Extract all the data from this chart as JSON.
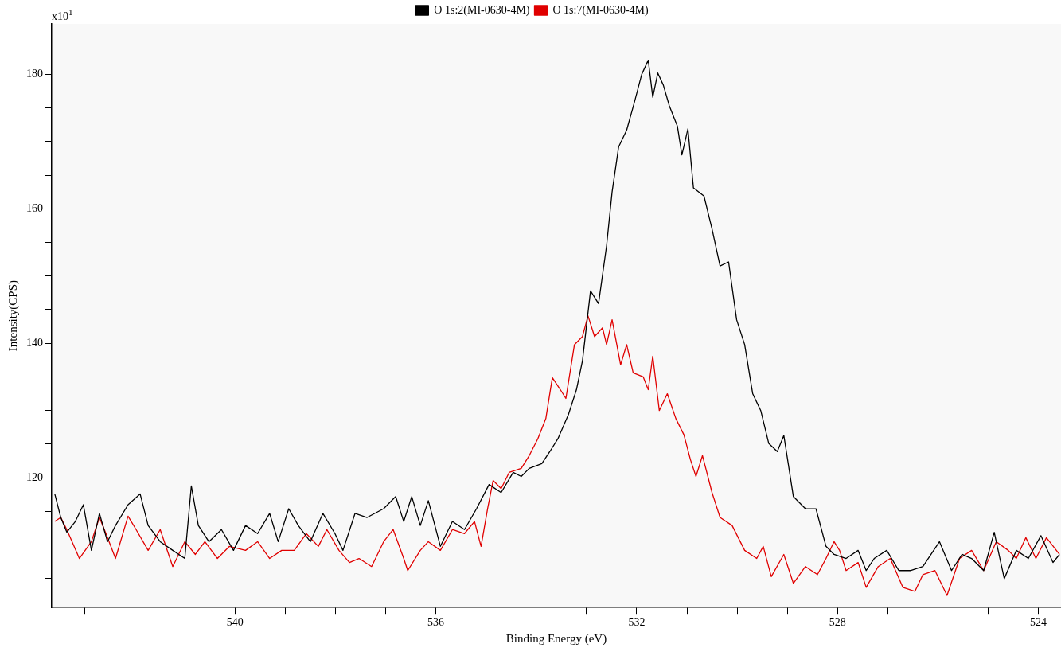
{
  "chart_data": {
    "type": "line",
    "xlabel": "Binding Energy (eV)",
    "ylabel": "Intensity(CPS)",
    "annotations": [
      "x10$^{1}$"
    ],
    "xlim": [
      543.65,
      523.55
    ],
    "ylim": [
      100.7,
      187.5
    ],
    "xticks": [
      {
        "value": 543,
        "label": null
      },
      {
        "value": 542,
        "label": null
      },
      {
        "value": 541,
        "label": null
      },
      540,
      {
        "value": 539,
        "label": null
      },
      {
        "value": 538,
        "label": null
      },
      {
        "value": 537,
        "label": null
      },
      536,
      {
        "value": 535,
        "label": null
      },
      {
        "value": 534,
        "label": null
      },
      {
        "value": 533,
        "label": null
      },
      532,
      {
        "value": 531,
        "label": null
      },
      {
        "value": 530,
        "label": null
      },
      {
        "value": 529,
        "label": null
      },
      528,
      {
        "value": 527,
        "label": null
      },
      {
        "value": 526,
        "label": null
      },
      {
        "value": 525,
        "label": null
      },
      524
    ],
    "yticks": [
      {
        "value": 105,
        "label": null
      },
      {
        "value": 110,
        "label": null
      },
      {
        "value": 115,
        "label": null
      },
      120,
      {
        "value": 125,
        "label": null
      },
      {
        "value": 130,
        "label": null
      },
      {
        "value": 135,
        "label": null
      },
      140,
      {
        "value": 145,
        "label": null
      },
      {
        "value": 150,
        "label": null
      },
      {
        "value": 155,
        "label": null
      },
      160,
      {
        "value": 165,
        "label": null
      },
      {
        "value": 170,
        "label": null
      },
      {
        "value": 175,
        "label": null
      },
      180,
      {
        "value": 185,
        "label": null
      }
    ],
    "grid": false,
    "legend": "top",
    "marker": "none",
    "line_style": "solid",
    "series": [
      {
        "name": "O 1s:2(MI-0630-4M)",
        "color": "#000000",
        "x": [
          543.59,
          543.47,
          543.35,
          543.18,
          543.02,
          542.86,
          542.7,
          542.54,
          542.38,
          542.13,
          541.89,
          541.73,
          541.49,
          541.24,
          541.0,
          540.87,
          540.73,
          540.52,
          540.27,
          540.03,
          539.79,
          539.55,
          539.31,
          539.14,
          538.93,
          538.74,
          538.5,
          538.25,
          538.01,
          537.85,
          537.61,
          537.37,
          537.04,
          536.8,
          536.64,
          536.48,
          536.31,
          536.15,
          535.91,
          535.67,
          535.43,
          535.19,
          534.94,
          534.7,
          534.46,
          534.3,
          534.14,
          533.89,
          533.73,
          533.57,
          533.36,
          533.2,
          533.08,
          532.92,
          532.76,
          532.6,
          532.49,
          532.36,
          532.2,
          532.04,
          531.9,
          531.77,
          531.68,
          531.58,
          531.47,
          531.35,
          531.19,
          531.1,
          530.98,
          530.87,
          530.66,
          530.5,
          530.34,
          530.17,
          530.01,
          529.85,
          529.69,
          529.53,
          529.37,
          529.2,
          529.07,
          528.88,
          528.64,
          528.43,
          528.23,
          528.07,
          527.83,
          527.59,
          527.43,
          527.27,
          527.02,
          526.78,
          526.54,
          526.3,
          525.97,
          525.73,
          525.52,
          525.33,
          525.09,
          524.88,
          524.68,
          524.44,
          524.2,
          523.95,
          523.71,
          523.58
        ],
        "values": [
          117.6,
          114.1,
          111.9,
          113.5,
          116.0,
          109.2,
          114.7,
          110.5,
          112.9,
          116.0,
          117.6,
          112.9,
          110.5,
          109.2,
          108.0,
          118.8,
          112.9,
          110.5,
          112.3,
          109.2,
          112.9,
          111.7,
          114.7,
          110.5,
          115.4,
          112.9,
          110.5,
          114.7,
          111.7,
          109.2,
          114.7,
          114.1,
          115.4,
          117.2,
          113.5,
          117.2,
          112.9,
          116.6,
          109.8,
          113.5,
          112.3,
          115.4,
          119.0,
          117.8,
          120.8,
          120.2,
          121.4,
          122.1,
          123.9,
          125.8,
          129.4,
          133.1,
          137.4,
          147.8,
          145.9,
          154.5,
          162.5,
          169.2,
          171.7,
          176.0,
          180.0,
          182.1,
          176.6,
          180.2,
          178.4,
          175.3,
          172.3,
          168.0,
          171.9,
          163.1,
          161.9,
          157.0,
          151.5,
          152.1,
          143.5,
          139.8,
          132.5,
          130.0,
          125.1,
          123.9,
          126.3,
          117.2,
          115.4,
          115.4,
          109.8,
          108.6,
          108.0,
          109.2,
          106.2,
          108.0,
          109.2,
          106.2,
          106.2,
          106.8,
          110.5,
          106.2,
          108.6,
          108.0,
          106.2,
          111.9,
          105.0,
          109.2,
          108.0,
          111.4,
          107.4,
          108.6
        ]
      },
      {
        "name": "O 1s:7(MI-0630-4M)",
        "color": "#e00000",
        "x": [
          543.59,
          543.47,
          543.35,
          543.1,
          542.86,
          542.7,
          542.57,
          542.38,
          542.13,
          541.97,
          541.73,
          541.49,
          541.24,
          541.0,
          540.79,
          540.6,
          540.35,
          540.11,
          539.79,
          539.55,
          539.31,
          539.07,
          538.82,
          538.58,
          538.34,
          538.17,
          537.93,
          537.72,
          537.53,
          537.28,
          537.04,
          536.85,
          536.64,
          536.56,
          536.31,
          536.15,
          535.91,
          535.67,
          535.43,
          535.23,
          535.1,
          534.97,
          534.86,
          534.7,
          534.54,
          534.3,
          534.14,
          533.97,
          533.81,
          533.68,
          533.52,
          533.41,
          533.24,
          533.08,
          532.97,
          532.84,
          532.68,
          532.6,
          532.49,
          532.32,
          532.2,
          532.07,
          531.87,
          531.77,
          531.68,
          531.55,
          531.39,
          531.22,
          531.06,
          530.93,
          530.82,
          530.69,
          530.5,
          530.34,
          530.1,
          529.85,
          529.61,
          529.48,
          529.32,
          529.07,
          528.88,
          528.64,
          528.4,
          528.23,
          528.07,
          527.96,
          527.83,
          527.59,
          527.43,
          527.19,
          526.95,
          526.7,
          526.46,
          526.3,
          526.06,
          525.82,
          525.57,
          525.33,
          525.09,
          524.84,
          524.6,
          524.44,
          524.25,
          524.05,
          523.84,
          523.58
        ],
        "values": [
          113.5,
          114.1,
          112.3,
          108.0,
          110.5,
          114.1,
          111.7,
          108.0,
          114.3,
          112.3,
          109.2,
          112.3,
          106.8,
          110.5,
          108.6,
          110.5,
          108.0,
          109.8,
          109.2,
          110.5,
          108.0,
          109.2,
          109.2,
          111.7,
          109.8,
          112.3,
          109.2,
          107.4,
          108.0,
          106.8,
          110.5,
          112.3,
          108.0,
          106.2,
          109.2,
          110.5,
          109.2,
          112.3,
          111.7,
          113.5,
          109.8,
          115.4,
          119.6,
          118.4,
          120.8,
          121.4,
          123.3,
          125.8,
          128.8,
          134.9,
          133.1,
          131.8,
          139.8,
          141.0,
          144.1,
          141.0,
          142.3,
          139.8,
          143.5,
          136.8,
          139.8,
          135.6,
          135.0,
          133.1,
          138.1,
          130.0,
          132.5,
          128.8,
          126.4,
          122.7,
          120.2,
          123.3,
          117.8,
          114.1,
          112.9,
          109.2,
          108.0,
          109.8,
          105.3,
          108.6,
          104.3,
          106.8,
          105.6,
          108.0,
          110.5,
          109.2,
          106.2,
          107.4,
          103.7,
          106.8,
          108.0,
          103.7,
          103.1,
          105.6,
          106.2,
          102.5,
          108.0,
          109.2,
          106.2,
          110.5,
          109.2,
          108.0,
          111.1,
          108.0,
          111.1,
          108.6
        ]
      }
    ]
  }
}
